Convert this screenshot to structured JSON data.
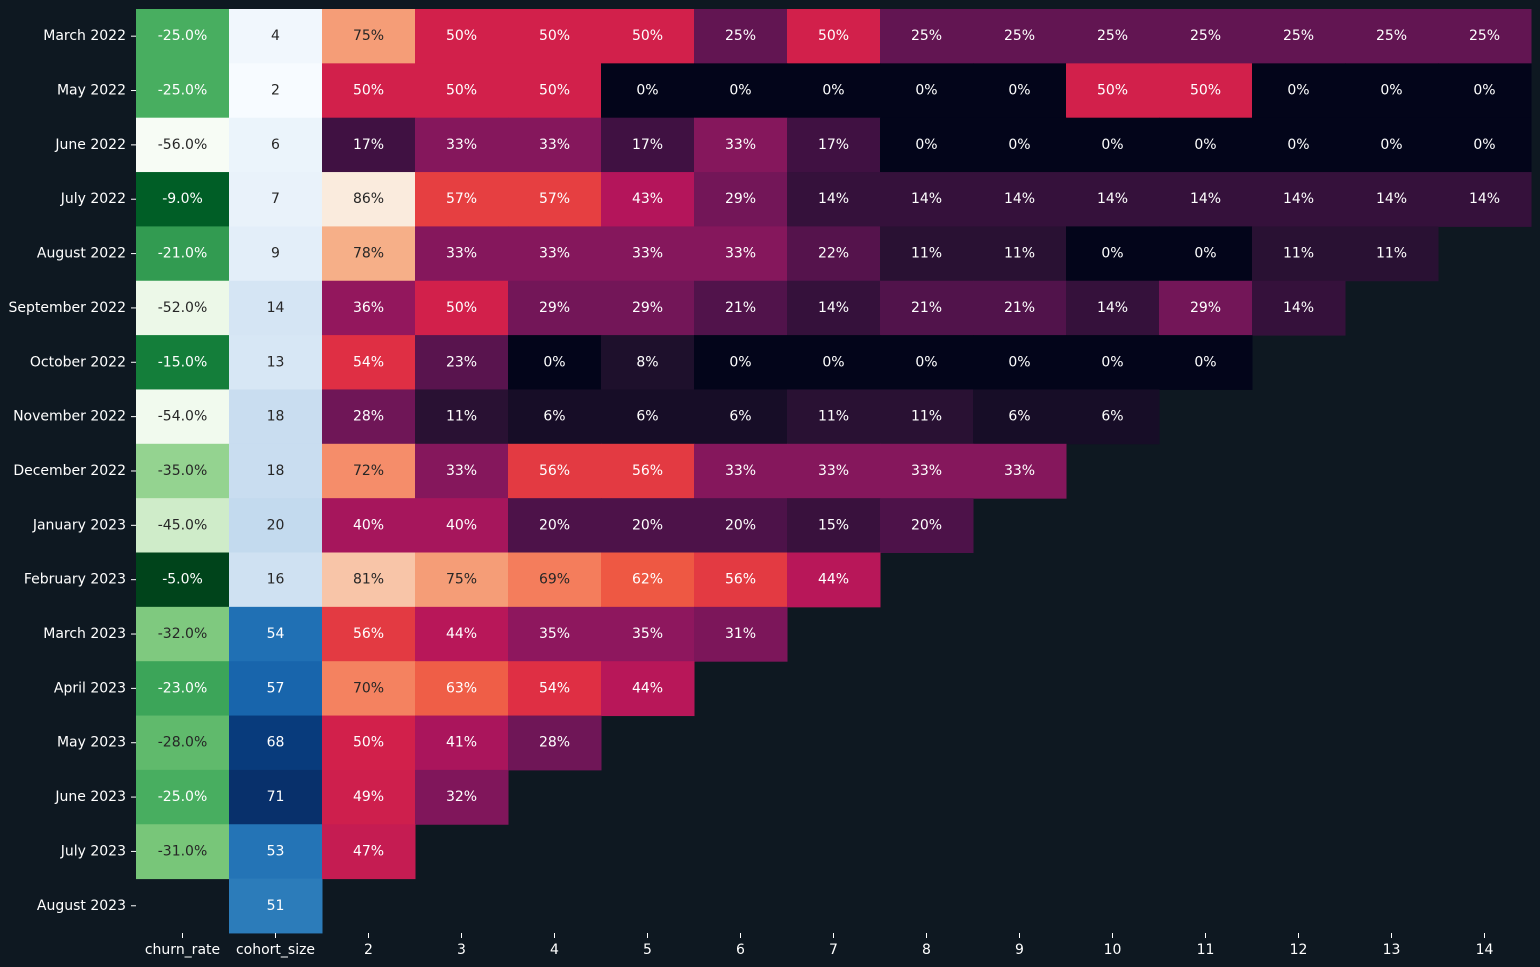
{
  "chart_data": {
    "type": "heatmap",
    "rows": [
      "March 2022",
      "May 2022",
      "June 2022",
      "July 2022",
      "August 2022",
      "September 2022",
      "October 2022",
      "November 2022",
      "December 2022",
      "January 2023",
      "February 2023",
      "March 2023",
      "April 2023",
      "May 2023",
      "June 2023",
      "July 2023",
      "August 2023"
    ],
    "columns": [
      "churn_rate",
      "cohort_size",
      "2",
      "3",
      "4",
      "5",
      "6",
      "7",
      "8",
      "9",
      "10",
      "11",
      "12",
      "13",
      "14"
    ],
    "churn_rate": [
      -25.0,
      -25.0,
      -56.0,
      -9.0,
      -21.0,
      -52.0,
      -15.0,
      -54.0,
      -35.0,
      -45.0,
      -5.0,
      -32.0,
      -23.0,
      -28.0,
      -25.0,
      -31.0,
      null
    ],
    "churn_rate_labels": [
      "-25.0%",
      "-25.0%",
      "-56.0%",
      "-9.0%",
      "-21.0%",
      "-52.0%",
      "-15.0%",
      "-54.0%",
      "-35.0%",
      "-45.0%",
      "-5.0%",
      "-32.0%",
      "-23.0%",
      "-28.0%",
      "-25.0%",
      "-31.0%",
      ""
    ],
    "cohort_size": [
      4,
      2,
      6,
      7,
      9,
      14,
      13,
      18,
      18,
      20,
      16,
      54,
      57,
      68,
      71,
      53,
      51
    ],
    "retention": [
      [
        75,
        50,
        50,
        50,
        25,
        50,
        25,
        25,
        25,
        25,
        25,
        25,
        25
      ],
      [
        50,
        50,
        50,
        0,
        0,
        0,
        0,
        0,
        50,
        50,
        0,
        0,
        0
      ],
      [
        17,
        33,
        33,
        17,
        33,
        17,
        0,
        0,
        0,
        0,
        0,
        0,
        0
      ],
      [
        86,
        57,
        57,
        43,
        29,
        14,
        14,
        14,
        14,
        14,
        14,
        14,
        14
      ],
      [
        78,
        33,
        33,
        33,
        33,
        22,
        11,
        11,
        0,
        0,
        11,
        11
      ],
      [
        36,
        50,
        29,
        29,
        21,
        14,
        21,
        21,
        14,
        29,
        14
      ],
      [
        54,
        23,
        0,
        8,
        0,
        0,
        0,
        0,
        0,
        0
      ],
      [
        28,
        11,
        6,
        6,
        6,
        11,
        11,
        6,
        6
      ],
      [
        72,
        33,
        56,
        56,
        33,
        33,
        33,
        33
      ],
      [
        40,
        40,
        20,
        20,
        20,
        15,
        20
      ],
      [
        81,
        75,
        69,
        62,
        56,
        44
      ],
      [
        56,
        44,
        35,
        35,
        31
      ],
      [
        70,
        63,
        54,
        44
      ],
      [
        50,
        41,
        28
      ],
      [
        49,
        32
      ],
      [
        47
      ],
      []
    ],
    "value_suffix": "%",
    "colormaps": {
      "churn_rate": "Greens",
      "cohort_size": "Blues",
      "retention": "rocket"
    },
    "background": "#0e1821",
    "text_light": "#ffffff",
    "text_dark": "#262626",
    "label_color": "#ffffff"
  }
}
